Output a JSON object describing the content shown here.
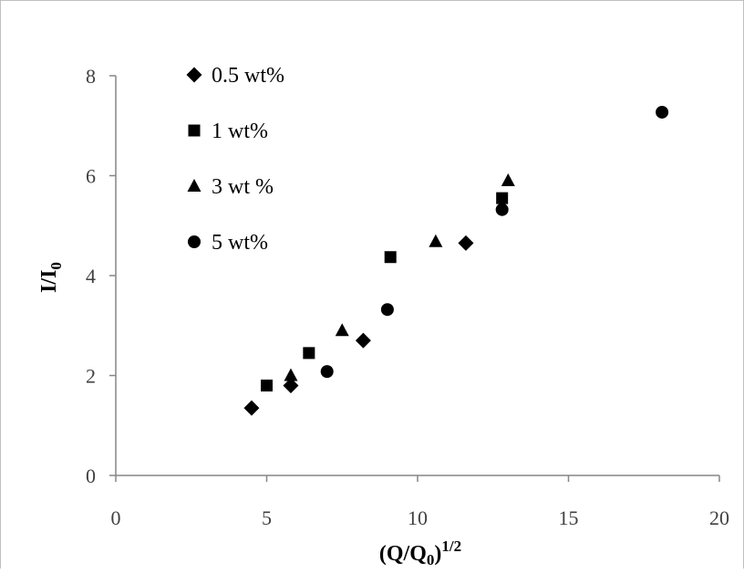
{
  "chart_data": {
    "type": "scatter",
    "title": "",
    "xlabel": "(Q/Q0)1/2",
    "xlabel_parts": {
      "open": "(Q/Q",
      "sub": "0",
      "close": ")",
      "sup": "1/2"
    },
    "ylabel": "I/I0",
    "ylabel_parts": {
      "main": "I/I",
      "sub": "0"
    },
    "xlim": [
      0,
      20
    ],
    "ylim": [
      0,
      8
    ],
    "xticks": [
      0,
      5,
      10,
      15,
      20
    ],
    "yticks": [
      0,
      2,
      4,
      6,
      8
    ],
    "grid": false,
    "legend_position": "top-left",
    "series": [
      {
        "name": "0.5 wt%",
        "marker": "diamond",
        "color": "#000000",
        "points": [
          {
            "x": 4.5,
            "y": 1.35
          },
          {
            "x": 5.8,
            "y": 1.8
          },
          {
            "x": 8.2,
            "y": 2.7
          },
          {
            "x": 11.6,
            "y": 4.65
          }
        ]
      },
      {
        "name": "1 wt%",
        "marker": "square",
        "color": "#000000",
        "points": [
          {
            "x": 5.0,
            "y": 1.8
          },
          {
            "x": 6.4,
            "y": 2.45
          },
          {
            "x": 9.1,
            "y": 4.37
          },
          {
            "x": 12.8,
            "y": 5.55
          }
        ]
      },
      {
        "name": "3 wt %",
        "marker": "triangle",
        "color": "#000000",
        "points": [
          {
            "x": 5.8,
            "y": 2.0
          },
          {
            "x": 7.5,
            "y": 2.9
          },
          {
            "x": 10.6,
            "y": 4.68
          },
          {
            "x": 13.0,
            "y": 5.9
          }
        ]
      },
      {
        "name": "5 wt%",
        "marker": "circle",
        "color": "#000000",
        "points": [
          {
            "x": 7.0,
            "y": 2.08
          },
          {
            "x": 9.0,
            "y": 3.32
          },
          {
            "x": 12.8,
            "y": 5.32
          },
          {
            "x": 18.1,
            "y": 7.27
          }
        ]
      }
    ]
  }
}
